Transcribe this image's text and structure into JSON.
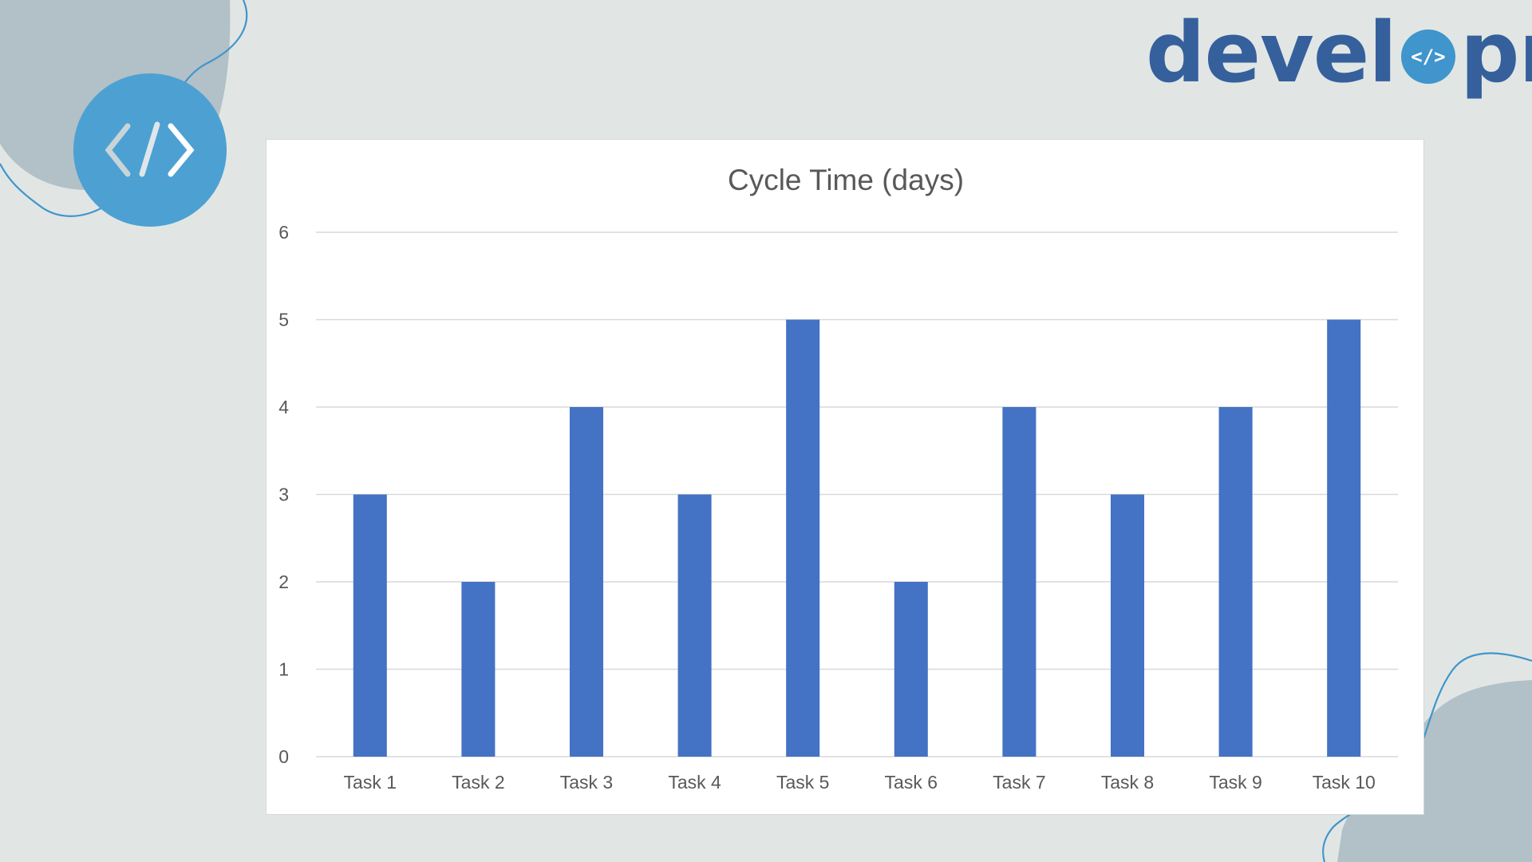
{
  "brand": {
    "logo_text_before": "devel",
    "logo_mark_glyph": "</>",
    "logo_text_after": "pn",
    "logo_color": "#35609c",
    "accent_color": "#3f95cc",
    "badge_icon": "code-icon",
    "badge_glyph": "</>"
  },
  "chart_data": {
    "type": "bar",
    "title": "Cycle Time (days)",
    "categories": [
      "Task 1",
      "Task 2",
      "Task 3",
      "Task 4",
      "Task 5",
      "Task 6",
      "Task 7",
      "Task 8",
      "Task 9",
      "Task 10"
    ],
    "values": [
      3,
      2,
      4,
      3,
      5,
      2,
      4,
      3,
      4,
      5
    ],
    "xlabel": "",
    "ylabel": "",
    "ylim": [
      0,
      6
    ],
    "yticks": [
      0,
      1,
      2,
      3,
      4,
      5,
      6
    ],
    "grid": true,
    "legend": "none",
    "bar_color": "#4472c4",
    "grid_color": "#d9d9d9",
    "text_color": "#595959"
  }
}
